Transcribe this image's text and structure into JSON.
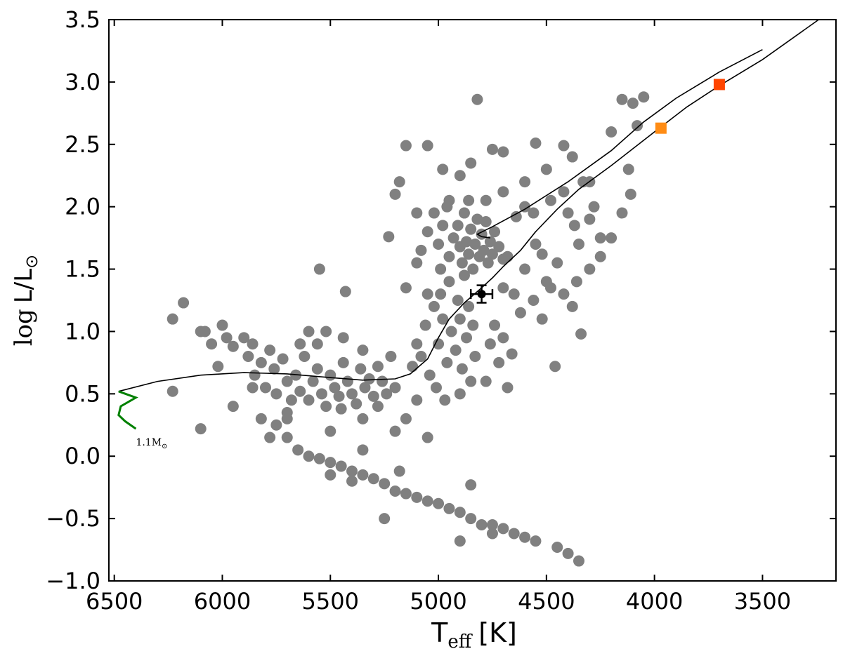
{
  "chart_data": {
    "type": "scatter",
    "xlim": [
      6525,
      3160
    ],
    "ylim": [
      -1,
      3.5
    ],
    "xticks": [
      6500,
      6000,
      5500,
      5000,
      4500,
      4000,
      3500
    ],
    "yticks": [
      {
        "value": -1,
        "label": "−1.0"
      },
      {
        "value": -0.5,
        "label": "−0.5"
      },
      {
        "value": 0,
        "label": "0.0"
      },
      0.5,
      {
        "value": 1,
        "label": "1.0"
      },
      1.5,
      {
        "value": 2,
        "label": "2.0"
      },
      2.5,
      {
        "value": 3,
        "label": "3.0"
      },
      3.5
    ],
    "xlabel_parts": [
      "T",
      "eff",
      "[K]"
    ],
    "ylabel_parts": [
      "log",
      "L/L",
      "⊙"
    ],
    "annotation_parts": [
      "1.1M",
      "⊙"
    ],
    "series": [
      {
        "type": "scatter",
        "color": "#808080",
        "x": [
          5650,
          5600,
          5550,
          5500,
          5450,
          5400,
          5350,
          5300,
          5250,
          5200,
          5150,
          5100,
          5050,
          5000,
          4950,
          4900,
          4850,
          4800,
          4750,
          4700,
          4650,
          4600,
          4550,
          4450,
          4400,
          4350,
          4900,
          4750,
          5250,
          5180,
          4850,
          5350,
          5400,
          5500,
          5700,
          5750,
          5700,
          6180,
          6230,
          6230,
          6100,
          6080,
          6050,
          6000,
          5980,
          5950,
          6020,
          5900,
          5880,
          5860,
          5850,
          5820,
          5800,
          5780,
          5760,
          5750,
          5720,
          5700,
          5680,
          5660,
          5640,
          5620,
          5600,
          5580,
          5560,
          5540,
          5520,
          5500,
          5480,
          5460,
          5440,
          5420,
          5400,
          5380,
          5360,
          5340,
          5320,
          5300,
          5280,
          5260,
          5240,
          5220,
          5200,
          5950,
          5860,
          5780,
          6100,
          5820,
          5700,
          5640,
          5560,
          5520,
          5600,
          5440,
          5350,
          5550,
          5430,
          5230,
          5280,
          5150,
          5100,
          5200,
          5350,
          5050,
          5450,
          5500,
          5120,
          5100,
          5080,
          5060,
          5040,
          5020,
          5000,
          4990,
          4980,
          4960,
          4950,
          4940,
          4920,
          4910,
          4900,
          4890,
          4880,
          4870,
          4860,
          4850,
          4840,
          4830,
          5010,
          4970,
          4900,
          4780,
          4760,
          4740,
          4720,
          4700,
          4680,
          4660,
          5150,
          5100,
          5050,
          4950,
          4930,
          4910,
          4900,
          4890,
          4880,
          4870,
          4860,
          4850,
          4840,
          4830,
          4820,
          4810,
          4800,
          4790,
          4780,
          4770,
          4760,
          4750,
          4740,
          4720,
          4700,
          4980,
          5000,
          5020,
          4960,
          4860,
          4780,
          5050,
          5080,
          4990,
          4820,
          5150,
          5050,
          4980,
          4900,
          4750,
          4700,
          4600,
          4550,
          4500,
          4420,
          4380,
          4300,
          4200,
          4150,
          4100,
          4050,
          4080,
          4120,
          4110,
          4150,
          4200,
          4250,
          4300,
          4350,
          4400,
          4450,
          4500,
          4550,
          4600,
          4650,
          4680,
          4620,
          4560,
          4520,
          4480,
          4420,
          4380,
          4340,
          4300,
          4360,
          4250,
          4460,
          4700,
          4640,
          4560,
          4480,
          4420,
          4370,
          4330,
          4520,
          4600,
          4700,
          4850,
          4950,
          5100,
          5200,
          5180,
          4280
        ],
        "y": [
          0.05,
          0,
          -0.02,
          -0.05,
          -0.08,
          -0.12,
          -0.15,
          -0.18,
          -0.22,
          -0.28,
          -0.3,
          -0.33,
          -0.36,
          -0.38,
          -0.42,
          -0.45,
          -0.5,
          -0.55,
          -0.55,
          -0.58,
          -0.62,
          -0.65,
          -0.68,
          -0.73,
          -0.78,
          -0.84,
          -0.68,
          -0.62,
          -0.5,
          -0.12,
          -0.23,
          0.05,
          -0.2,
          -0.15,
          0.15,
          0.25,
          0.35,
          1.23,
          1.1,
          0.52,
          1,
          1,
          0.9,
          1.05,
          0.95,
          0.88,
          0.72,
          0.95,
          0.8,
          0.9,
          0.65,
          0.75,
          0.55,
          0.85,
          0.7,
          0.5,
          0.78,
          0.6,
          0.45,
          0.65,
          0.52,
          0.8,
          0.45,
          0.6,
          0.7,
          0.5,
          0.4,
          0.65,
          0.55,
          0.48,
          0.75,
          0.6,
          0.5,
          0.42,
          0.7,
          0.55,
          0.62,
          0.48,
          0.72,
          0.6,
          0.5,
          0.8,
          0.55,
          0.4,
          0.55,
          0.15,
          0.22,
          0.3,
          0.3,
          0.9,
          0.9,
          1,
          1,
          0.95,
          0.85,
          1.5,
          1.32,
          1.76,
          0.4,
          0.3,
          0.45,
          0.2,
          0.3,
          0.15,
          0.38,
          0.2,
          0.72,
          0.9,
          0.8,
          1.05,
          0.65,
          1.2,
          0.9,
          1.3,
          1.1,
          0.75,
          1.4,
          1,
          0.85,
          1.25,
          1.1,
          0.7,
          1.45,
          0.95,
          1.2,
          0.6,
          1.05,
          0.8,
          0.55,
          0.45,
          0.5,
          0.6,
          0.9,
          1.05,
          0.75,
          0.95,
          0.55,
          0.82,
          1.35,
          1.55,
          1.3,
          1.6,
          1.75,
          1.85,
          1.68,
          1.55,
          1.95,
          1.72,
          1.62,
          1.82,
          1.5,
          1.7,
          1.9,
          1.6,
          1.78,
          1.65,
          1.88,
          1.55,
          1.72,
          1.62,
          1.8,
          1.68,
          1.58,
          1.85,
          1.7,
          1.95,
          2,
          2.05,
          2.05,
          1.8,
          1.65,
          1.5,
          2.86,
          2.49,
          2.49,
          2.3,
          2.25,
          2.46,
          2.44,
          2.2,
          2.51,
          2.3,
          2.49,
          2.4,
          2.2,
          2.6,
          2.86,
          2.83,
          2.88,
          2.65,
          2.3,
          2.1,
          1.95,
          1.75,
          1.6,
          1.9,
          1.7,
          1.95,
          1.55,
          1.4,
          1.7,
          1.5,
          1.3,
          1.6,
          1.15,
          1.25,
          1.1,
          1.35,
          1.3,
          1.2,
          0.98,
          1.5,
          1.4,
          1.75,
          0.72,
          1.35,
          1.92,
          1.95,
          2.05,
          2.12,
          1.85,
          2.2,
          1.62,
          2,
          2.12,
          2.35,
          2.05,
          1.95,
          2.1,
          2.2,
          2
        ]
      },
      {
        "type": "line",
        "color": "#000000",
        "x": [
          6480,
          6300,
          6100,
          5900,
          5700,
          5500,
          5350,
          5200,
          5130,
          5050,
          5000,
          4950,
          4880,
          4800,
          4750,
          4700,
          4620,
          4550,
          4450,
          4350,
          4200,
          4000,
          3850,
          3700,
          3500,
          3240,
          null,
          4760,
          4800,
          4820,
          4750,
          4600,
          4400,
          4200,
          4050,
          3900,
          3700,
          3500
        ],
        "y": [
          0.52,
          0.6,
          0.65,
          0.67,
          0.66,
          0.63,
          0.61,
          0.62,
          0.66,
          0.78,
          0.95,
          1.1,
          1.23,
          1.35,
          1.43,
          1.52,
          1.65,
          1.8,
          1.98,
          2.14,
          2.33,
          2.6,
          2.8,
          2.97,
          3.18,
          3.5,
          null,
          1.75,
          1.76,
          1.78,
          1.84,
          1.98,
          2.2,
          2.45,
          2.68,
          2.87,
          3.08,
          3.26
        ]
      },
      {
        "type": "line",
        "color": "#008000",
        "x": [
          6480,
          6400,
          6470,
          6480,
          6450,
          6400
        ],
        "y": [
          0.52,
          0.47,
          0.4,
          0.33,
          0.28,
          0.22
        ]
      },
      {
        "type": "errorbar",
        "color": "#000000",
        "x": [
          4800
        ],
        "y": [
          1.3
        ],
        "xerr": [
          50
        ],
        "yerr": [
          0.07
        ]
      },
      {
        "type": "square",
        "color": "#ff8c14",
        "x": [
          3970
        ],
        "y": [
          2.63
        ]
      },
      {
        "type": "square",
        "color": "#ff4500",
        "x": [
          3700
        ],
        "y": [
          2.98
        ]
      }
    ]
  }
}
